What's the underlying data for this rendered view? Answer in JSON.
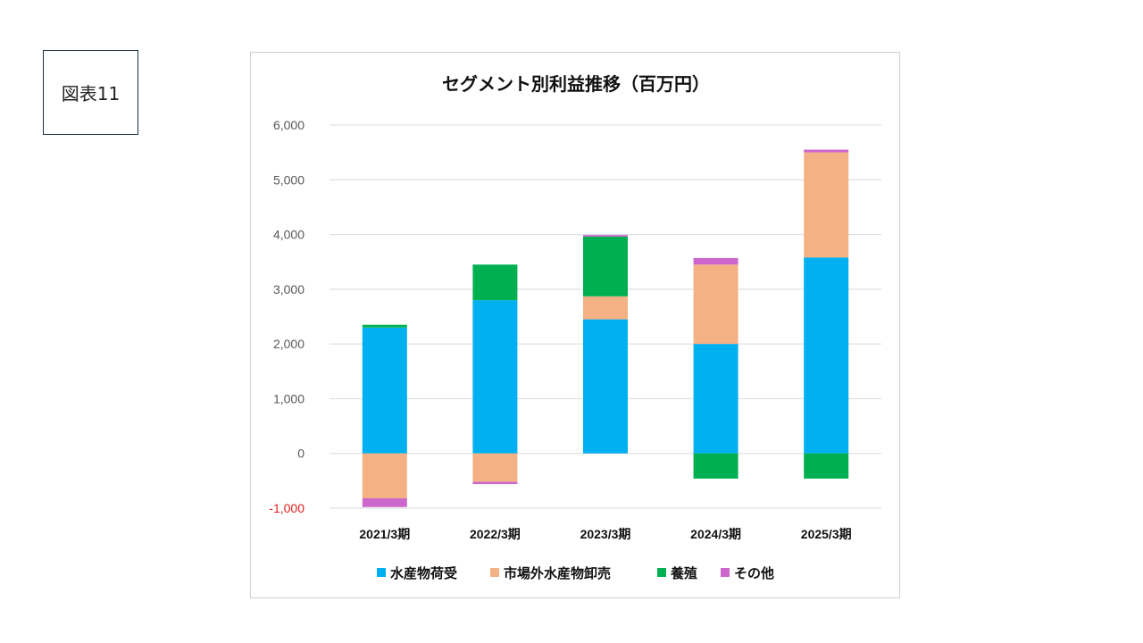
{
  "figure_label": "図表11",
  "colors": {
    "seafood_consignment": "#00b0f0",
    "offmarket_wholesale": "#f4b183",
    "aquaculture": "#00b050",
    "other": "#cc66cc"
  },
  "chart_data": {
    "type": "bar",
    "stacked": true,
    "title": "セグメント別利益推移（百万円）",
    "xlabel": "",
    "ylabel": "",
    "ylim": [
      -1000,
      6000
    ],
    "yticks": [
      6000,
      5000,
      4000,
      3000,
      2000,
      1000,
      0,
      -1000
    ],
    "ytick_labels": [
      "6,000",
      "5,000",
      "4,000",
      "3,000",
      "2,000",
      "1,000",
      "0",
      "-1,000"
    ],
    "categories": [
      "2021/3期",
      "2022/3期",
      "2023/3期",
      "2024/3期",
      "2025/3期"
    ],
    "grid": true,
    "legend_position": "bottom",
    "series": [
      {
        "name": "水産物荷受",
        "color_key": "seafood_consignment",
        "values": [
          2300,
          2800,
          2450,
          2000,
          3580
        ]
      },
      {
        "name": "市場外水産物卸売",
        "color_key": "offmarket_wholesale",
        "values": [
          -820,
          -520,
          420,
          1450,
          1920
        ]
      },
      {
        "name": "養殖",
        "color_key": "aquaculture",
        "values": [
          50,
          650,
          1090,
          -460,
          -460
        ]
      },
      {
        "name": "その他",
        "color_key": "other",
        "values": [
          -160,
          -40,
          30,
          120,
          50
        ]
      }
    ]
  }
}
